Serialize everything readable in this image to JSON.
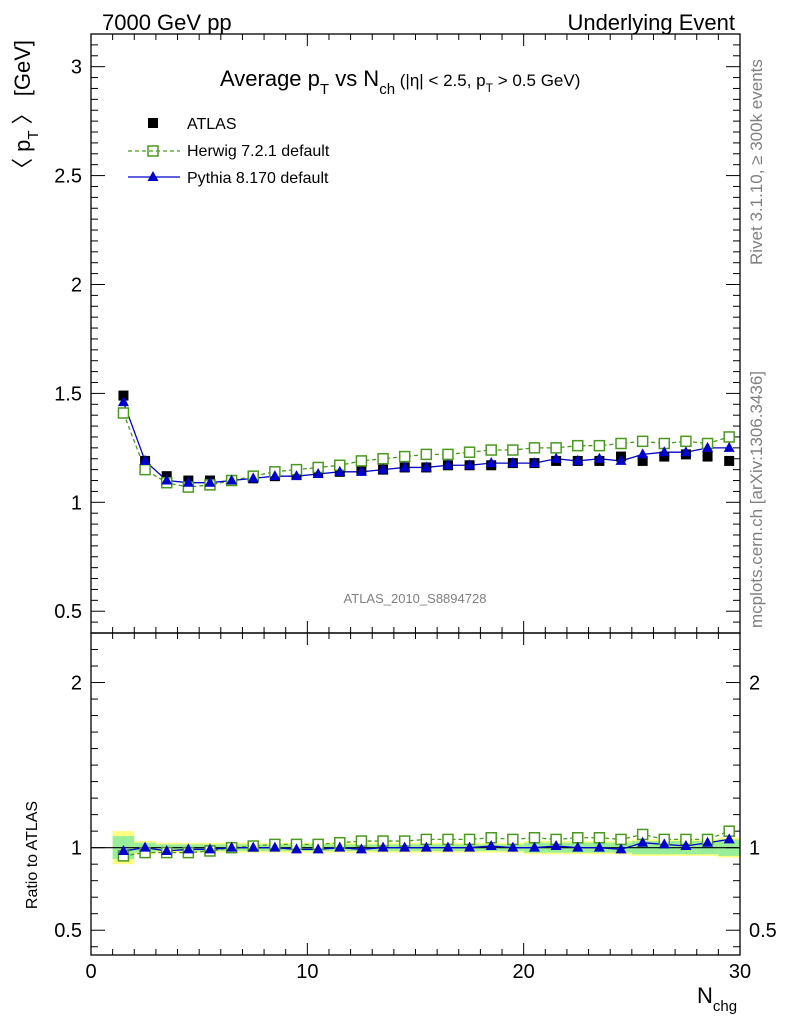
{
  "header": {
    "left": "7000 GeV pp",
    "right": "Underlying Event"
  },
  "side": {
    "rivet": "Rivet 3.1.10, ≥ 300k events",
    "mcplots": "mcplots.cern.ch [arXiv:1306.3436]"
  },
  "colors": {
    "atlas": "#000000",
    "herwig": "#4a9a1f",
    "pythia": "#0000cc",
    "band_inner": "#99ee99",
    "band_outer": "#ffff80"
  },
  "chart_data": {
    "type": "scatter",
    "title_main": "Average p",
    "title_sub1": "T",
    "title_mid": " vs N",
    "title_sub2": "ch",
    "title_cuts_a": " (|η| < 2.5, p",
    "title_cuts_sub": "T",
    "title_cuts_b": " > 0.5 GeV)",
    "ylabel_open": "〈 p",
    "ylabel_sub": "T",
    "ylabel_close": " 〉 [GeV]",
    "xlabel_main": "N",
    "xlabel_sub": "chg",
    "ratio_ylabel": "Ratio to ATLAS",
    "watermark": "ATLAS_2010_S8894728",
    "xlim": [
      0,
      30
    ],
    "ylim": [
      0.4,
      3.15
    ],
    "ratio_ylim": [
      0.35,
      2.3
    ],
    "x_ticks": [
      "0",
      "10",
      "20",
      "30"
    ],
    "y_ticks": [
      "0.5",
      "1",
      "1.5",
      "2",
      "2.5",
      "3"
    ],
    "ratio_ticks": [
      "0.5",
      "1",
      "2"
    ],
    "x": [
      1.5,
      2.5,
      3.5,
      4.5,
      5.5,
      6.5,
      7.5,
      8.5,
      9.5,
      10.5,
      11.5,
      12.5,
      13.5,
      14.5,
      15.5,
      16.5,
      17.5,
      18.5,
      19.5,
      20.5,
      21.5,
      22.5,
      23.5,
      24.5,
      25.5,
      26.5,
      27.5,
      28.5,
      29.5
    ],
    "legend": [
      "ATLAS",
      "Herwig 7.2.1 default",
      "Pythia 8.170 default"
    ],
    "series": [
      {
        "name": "ATLAS",
        "values": [
          1.49,
          1.19,
          1.12,
          1.1,
          1.1,
          1.1,
          1.11,
          1.12,
          1.13,
          1.14,
          1.14,
          1.15,
          1.15,
          1.16,
          1.16,
          1.17,
          1.17,
          1.17,
          1.18,
          1.18,
          1.19,
          1.19,
          1.19,
          1.21,
          1.19,
          1.21,
          1.22,
          1.21,
          1.19
        ]
      },
      {
        "name": "Herwig 7.2.1 default",
        "values": [
          1.41,
          1.15,
          1.09,
          1.07,
          1.08,
          1.1,
          1.12,
          1.14,
          1.15,
          1.16,
          1.17,
          1.19,
          1.2,
          1.21,
          1.22,
          1.22,
          1.23,
          1.24,
          1.24,
          1.25,
          1.25,
          1.26,
          1.26,
          1.27,
          1.28,
          1.27,
          1.28,
          1.27,
          1.3
        ]
      },
      {
        "name": "Pythia 8.170 default",
        "values": [
          1.46,
          1.19,
          1.1,
          1.09,
          1.09,
          1.1,
          1.11,
          1.12,
          1.12,
          1.13,
          1.14,
          1.14,
          1.15,
          1.16,
          1.16,
          1.17,
          1.17,
          1.18,
          1.18,
          1.18,
          1.2,
          1.19,
          1.2,
          1.19,
          1.22,
          1.23,
          1.23,
          1.25,
          1.25
        ]
      }
    ],
    "ratio_series": [
      {
        "name": "Herwig 7.2.1 default",
        "values": [
          0.95,
          0.97,
          0.97,
          0.97,
          0.98,
          1.0,
          1.01,
          1.02,
          1.02,
          1.02,
          1.03,
          1.04,
          1.04,
          1.04,
          1.05,
          1.05,
          1.05,
          1.06,
          1.05,
          1.06,
          1.05,
          1.06,
          1.06,
          1.05,
          1.08,
          1.05,
          1.05,
          1.05,
          1.1
        ]
      },
      {
        "name": "Pythia 8.170 default",
        "values": [
          0.98,
          1.0,
          0.98,
          0.99,
          0.99,
          1.0,
          1.0,
          1.0,
          0.99,
          0.99,
          1.0,
          0.99,
          1.0,
          1.0,
          1.0,
          1.0,
          1.0,
          1.01,
          1.0,
          1.0,
          1.01,
          1.0,
          1.0,
          0.99,
          1.03,
          1.02,
          1.01,
          1.03,
          1.05
        ]
      }
    ],
    "ratio_band_inner": [
      0.07,
      0.03,
      0.02,
      0.02,
      0.02,
      0.02,
      0.02,
      0.02,
      0.02,
      0.02,
      0.02,
      0.02,
      0.02,
      0.02,
      0.02,
      0.02,
      0.02,
      0.02,
      0.02,
      0.03,
      0.03,
      0.03,
      0.03,
      0.03,
      0.04,
      0.04,
      0.04,
      0.04,
      0.05
    ],
    "ratio_band_outer": [
      0.1,
      0.04,
      0.03,
      0.03,
      0.03,
      0.03,
      0.03,
      0.03,
      0.03,
      0.03,
      0.03,
      0.03,
      0.03,
      0.03,
      0.03,
      0.03,
      0.03,
      0.03,
      0.03,
      0.04,
      0.04,
      0.04,
      0.04,
      0.04,
      0.05,
      0.05,
      0.05,
      0.05,
      0.06
    ],
    "grid": false,
    "legend_placement": "top-left"
  }
}
